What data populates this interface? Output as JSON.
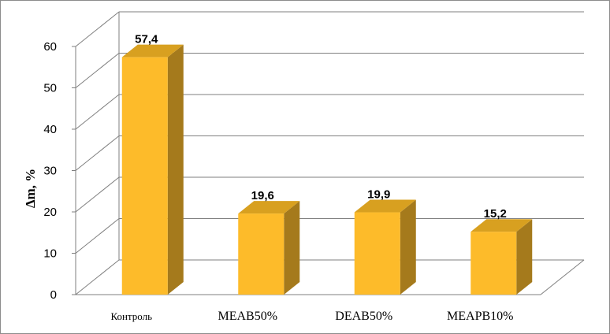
{
  "chart_data": {
    "type": "bar",
    "categories": [
      "Контроль",
      "MEAB50%",
      "DEAB50%",
      "MEAPB10%"
    ],
    "values": [
      57.4,
      19.6,
      19.9,
      15.2
    ],
    "data_labels": [
      "57,4",
      "19,6",
      "19,9",
      "15,2"
    ],
    "title": "",
    "xlabel": "",
    "ylabel": "Δm, %",
    "ylim": [
      0,
      60
    ],
    "yticks": [
      0,
      10,
      20,
      30,
      40,
      50,
      60
    ],
    "grid": true,
    "three_d": true,
    "legend": "none",
    "colors": {
      "bar_front": "#fdbb2a",
      "bar_side": "#a57a1c",
      "bar_top": "#d8a020",
      "grid": "#7f7f7f",
      "axis": "#7f7f7f"
    }
  }
}
